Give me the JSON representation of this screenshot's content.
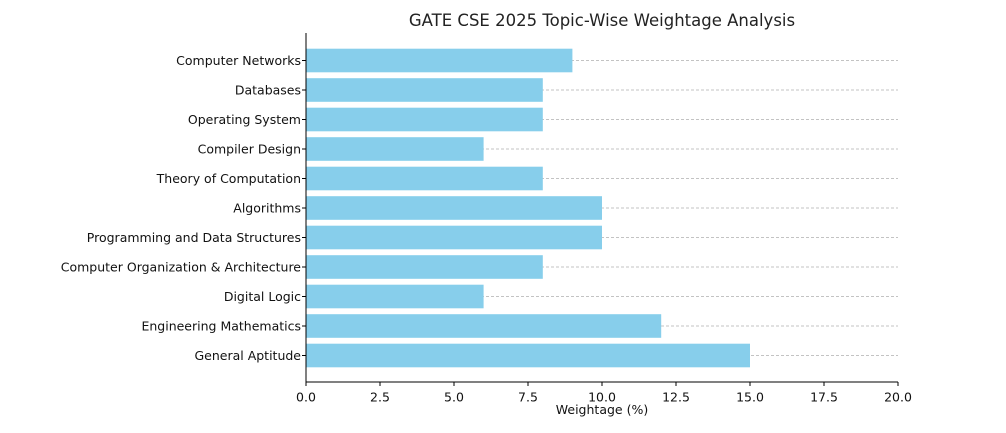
{
  "chart_data": {
    "type": "bar",
    "orientation": "horizontal",
    "title": "GATE CSE 2025 Topic-Wise Weightage Analysis",
    "xlabel": "Weightage (%)",
    "ylabel": "",
    "xlim": [
      0,
      20
    ],
    "xticks": [
      0,
      2.5,
      5,
      7.5,
      10,
      12.5,
      15,
      17.5,
      20
    ],
    "xtick_labels": [
      "0.0",
      "2.5",
      "5.0",
      "7.5",
      "10.0",
      "12.5",
      "15.0",
      "17.5",
      "20.0"
    ],
    "grid": "x-dashed",
    "bar_color": "#87CEEB",
    "categories": [
      "General Aptitude",
      "Engineering Mathematics",
      "Digital Logic",
      "Computer Organization & Architecture",
      "Programming and Data Structures",
      "Algorithms",
      "Theory of Computation",
      "Compiler Design",
      "Operating System",
      "Databases",
      "Computer Networks"
    ],
    "values": [
      15,
      12,
      6,
      8,
      10,
      10,
      8,
      6,
      8,
      8,
      9
    ]
  }
}
